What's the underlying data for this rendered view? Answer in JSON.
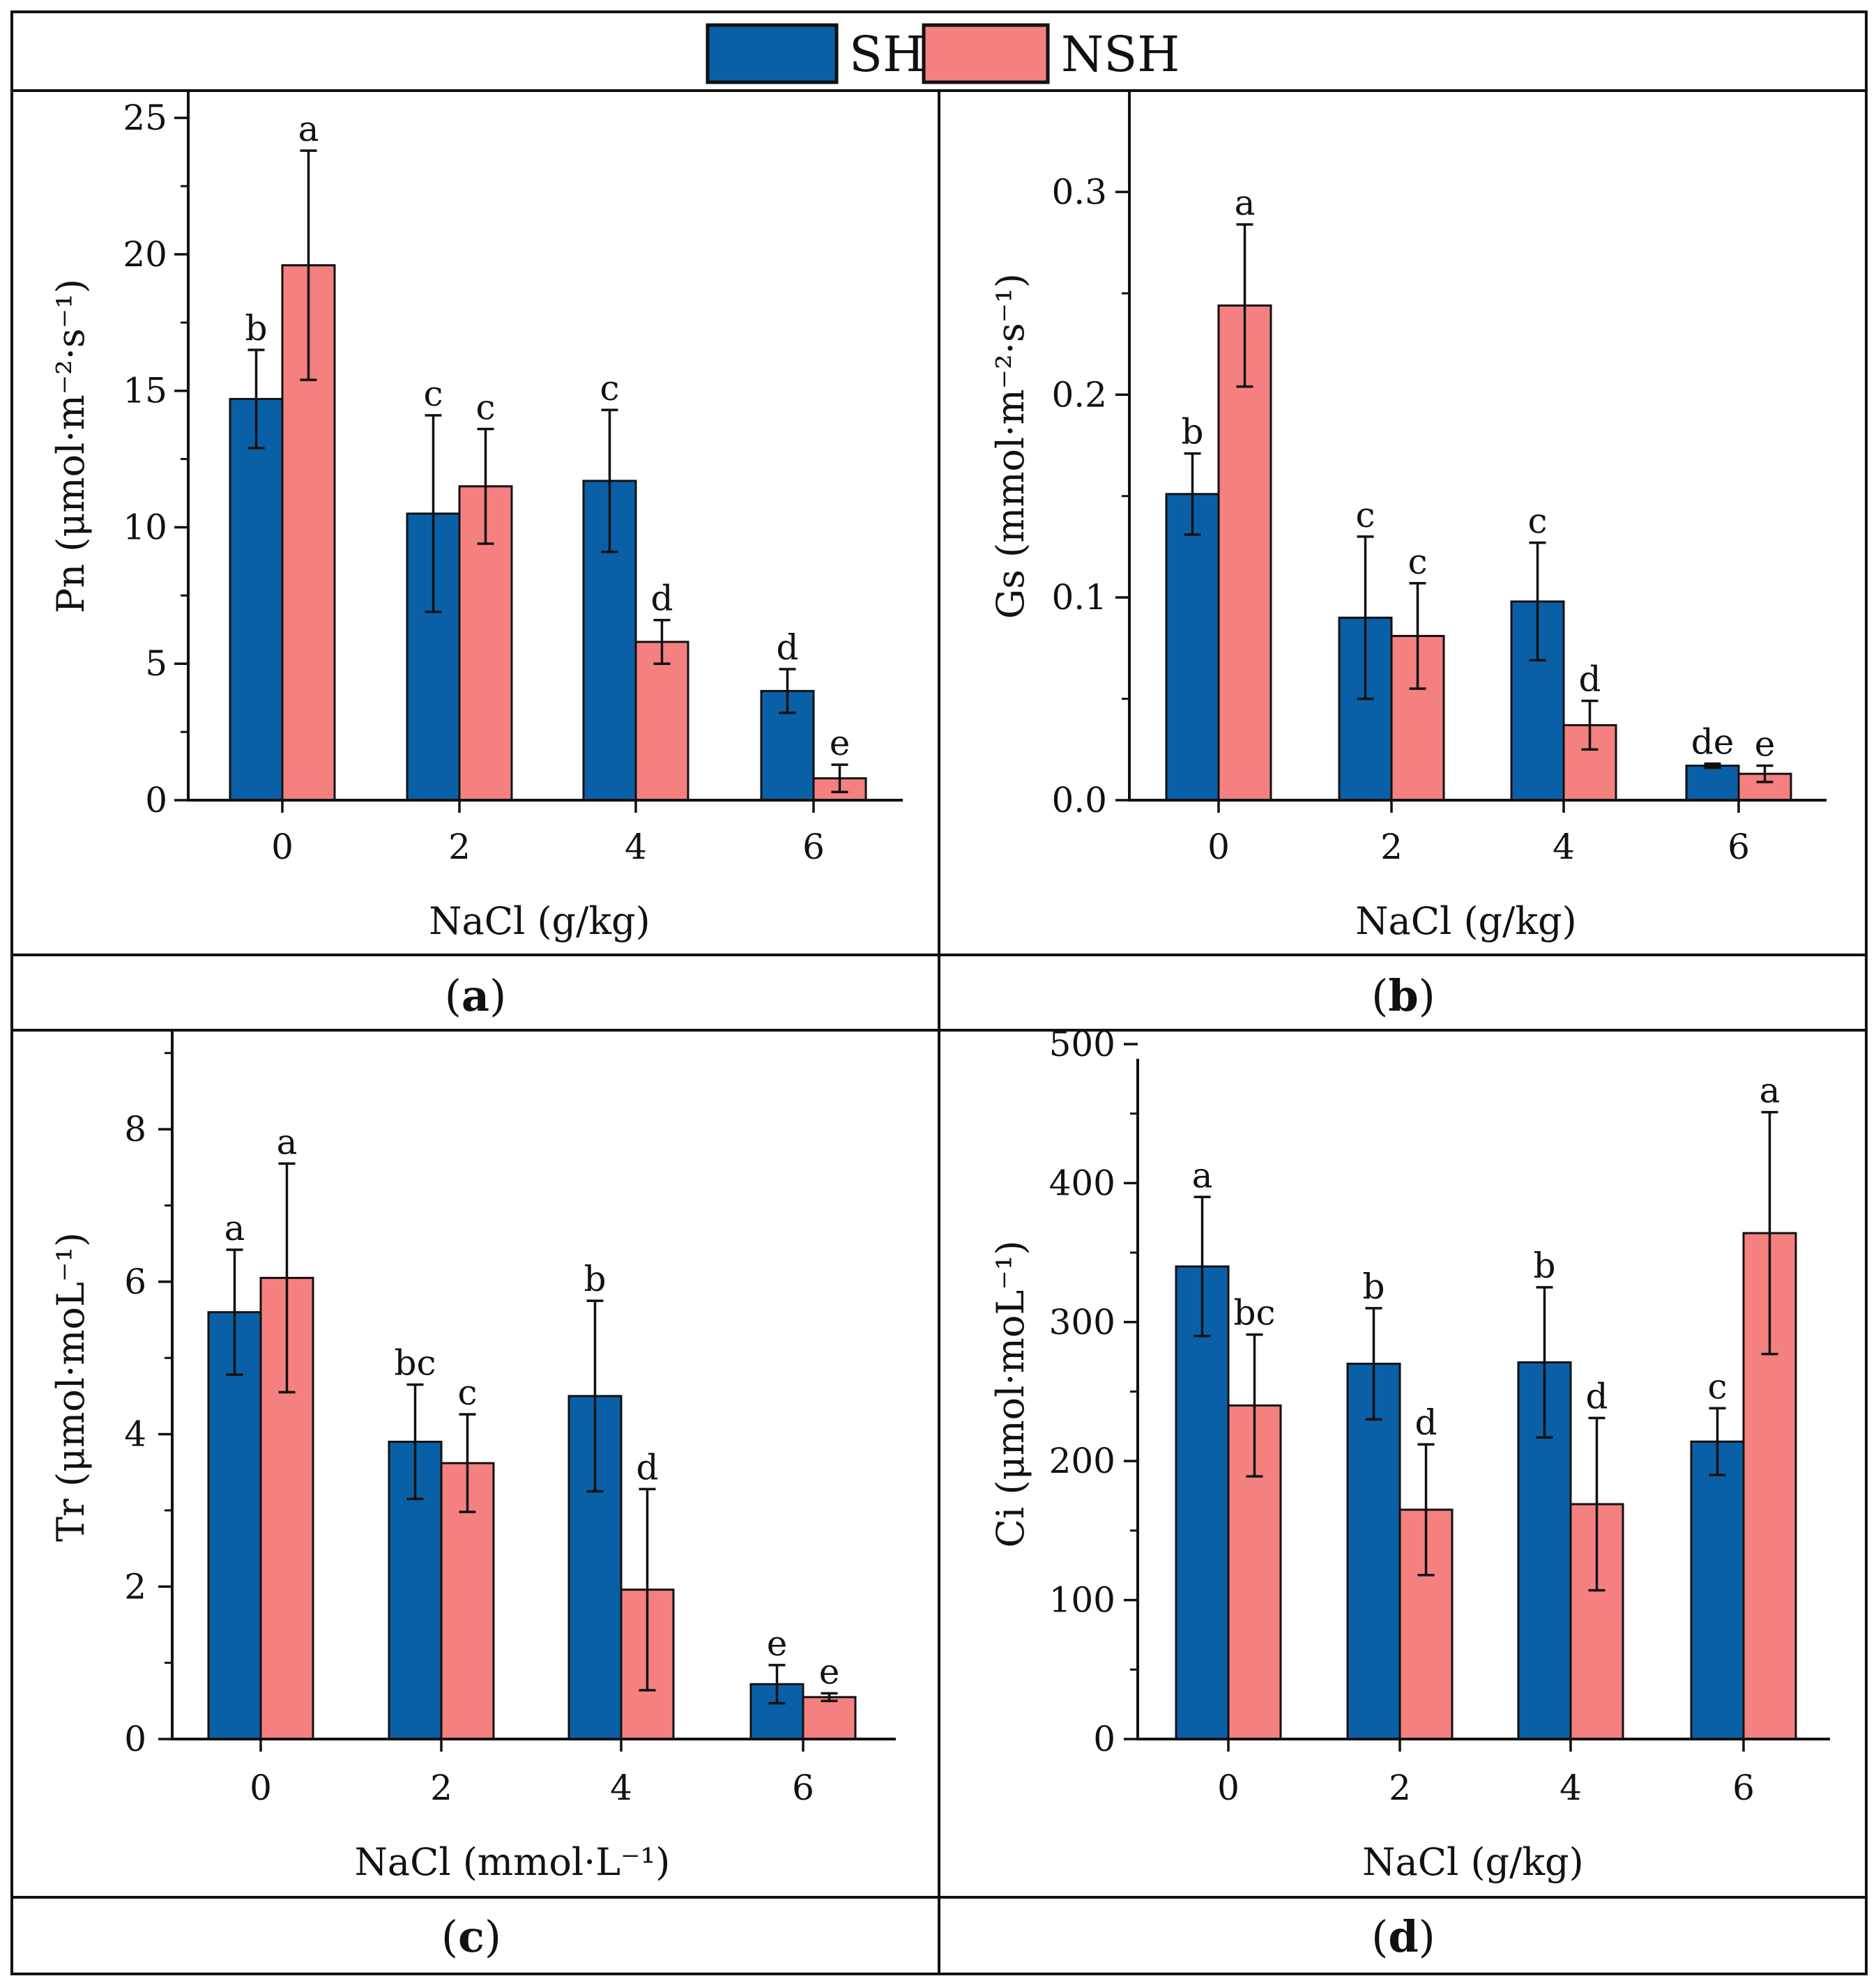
{
  "legend": {
    "entries": [
      {
        "name": "SH",
        "color": "#0a60a6"
      },
      {
        "name": "NSH",
        "color": "#f58080"
      }
    ]
  },
  "chart_data": [
    {
      "type": "bar",
      "panel_label": "a",
      "categories": [
        "0",
        "2",
        "4",
        "6"
      ],
      "xlabel": "NaCl (g/kg)",
      "ylabel": "Pn (μmol·m⁻²·s⁻¹)",
      "ylim": [
        0,
        26
      ],
      "yticks": [
        0,
        5,
        10,
        15,
        20,
        25
      ],
      "ytick_labels": [
        "0",
        "5",
        "10",
        "15",
        "20",
        "25"
      ],
      "series": [
        {
          "name": "SH",
          "values": [
            14.7,
            10.5,
            11.7,
            4.0
          ],
          "errors": [
            1.8,
            3.6,
            2.6,
            0.8
          ],
          "letters": [
            "b",
            "c",
            "c",
            "d"
          ]
        },
        {
          "name": "NSH",
          "values": [
            19.6,
            11.5,
            5.8,
            0.8
          ],
          "errors": [
            4.2,
            2.1,
            0.8,
            0.5
          ],
          "letters": [
            "a",
            "c",
            "d",
            "e"
          ]
        }
      ]
    },
    {
      "type": "bar",
      "panel_label": "b",
      "categories": [
        "0",
        "2",
        "4",
        "6"
      ],
      "xlabel": "NaCl (g/kg)",
      "ylabel": "Gs (mmol·m⁻²·s⁻¹)",
      "ylim": [
        0,
        0.35
      ],
      "yticks": [
        0,
        0.1,
        0.2,
        0.3
      ],
      "ytick_labels": [
        "0.0",
        "0.1",
        "0.2",
        "0.3"
      ],
      "series": [
        {
          "name": "SH",
          "values": [
            0.151,
            0.09,
            0.098,
            0.017
          ],
          "errors": [
            0.02,
            0.04,
            0.029,
            0.001
          ],
          "letters": [
            "b",
            "c",
            "c",
            "de"
          ]
        },
        {
          "name": "NSH",
          "values": [
            0.244,
            0.081,
            0.037,
            0.013
          ],
          "errors": [
            0.04,
            0.026,
            0.012,
            0.004
          ],
          "letters": [
            "a",
            "c",
            "d",
            "e"
          ]
        }
      ]
    },
    {
      "type": "bar",
      "panel_label": "c",
      "categories": [
        "0",
        "2",
        "4",
        "6"
      ],
      "xlabel": "NaCl (mmol·L⁻¹)",
      "ylabel": "Tr (μmol·moL⁻¹)",
      "ylim": [
        0,
        9.3
      ],
      "yticks": [
        0,
        2,
        4,
        6,
        8
      ],
      "ytick_labels": [
        "0",
        "2",
        "4",
        "6",
        "8"
      ],
      "series": [
        {
          "name": "SH",
          "values": [
            5.6,
            3.9,
            4.5,
            0.72
          ],
          "errors": [
            0.82,
            0.75,
            1.25,
            0.25
          ],
          "letters": [
            "a",
            "bc",
            "b",
            "e"
          ]
        },
        {
          "name": "NSH",
          "values": [
            6.05,
            3.62,
            1.96,
            0.55
          ],
          "errors": [
            1.5,
            0.64,
            1.32,
            0.05
          ],
          "letters": [
            "a",
            "c",
            "d",
            "e"
          ]
        }
      ]
    },
    {
      "type": "bar",
      "panel_label": "d",
      "categories": [
        "0",
        "2",
        "4",
        "6"
      ],
      "xlabel": "NaCl (g/kg)",
      "ylabel": "Ci (μmol·moL⁻¹)",
      "ylim": [
        0,
        510
      ],
      "yticks": [
        0,
        100,
        200,
        300,
        400,
        500
      ],
      "ytick_labels": [
        "0",
        "100",
        "200",
        "300",
        "400",
        "500"
      ],
      "series": [
        {
          "name": "SH",
          "values": [
            340,
            270,
            271,
            214
          ],
          "errors": [
            50,
            40,
            54,
            24
          ],
          "letters": [
            "a",
            "b",
            "b",
            "c"
          ]
        },
        {
          "name": "NSH",
          "values": [
            240,
            165,
            169,
            364
          ],
          "errors": [
            51,
            47,
            62,
            87
          ],
          "letters": [
            "bc",
            "d",
            "d",
            "a"
          ]
        }
      ]
    }
  ]
}
